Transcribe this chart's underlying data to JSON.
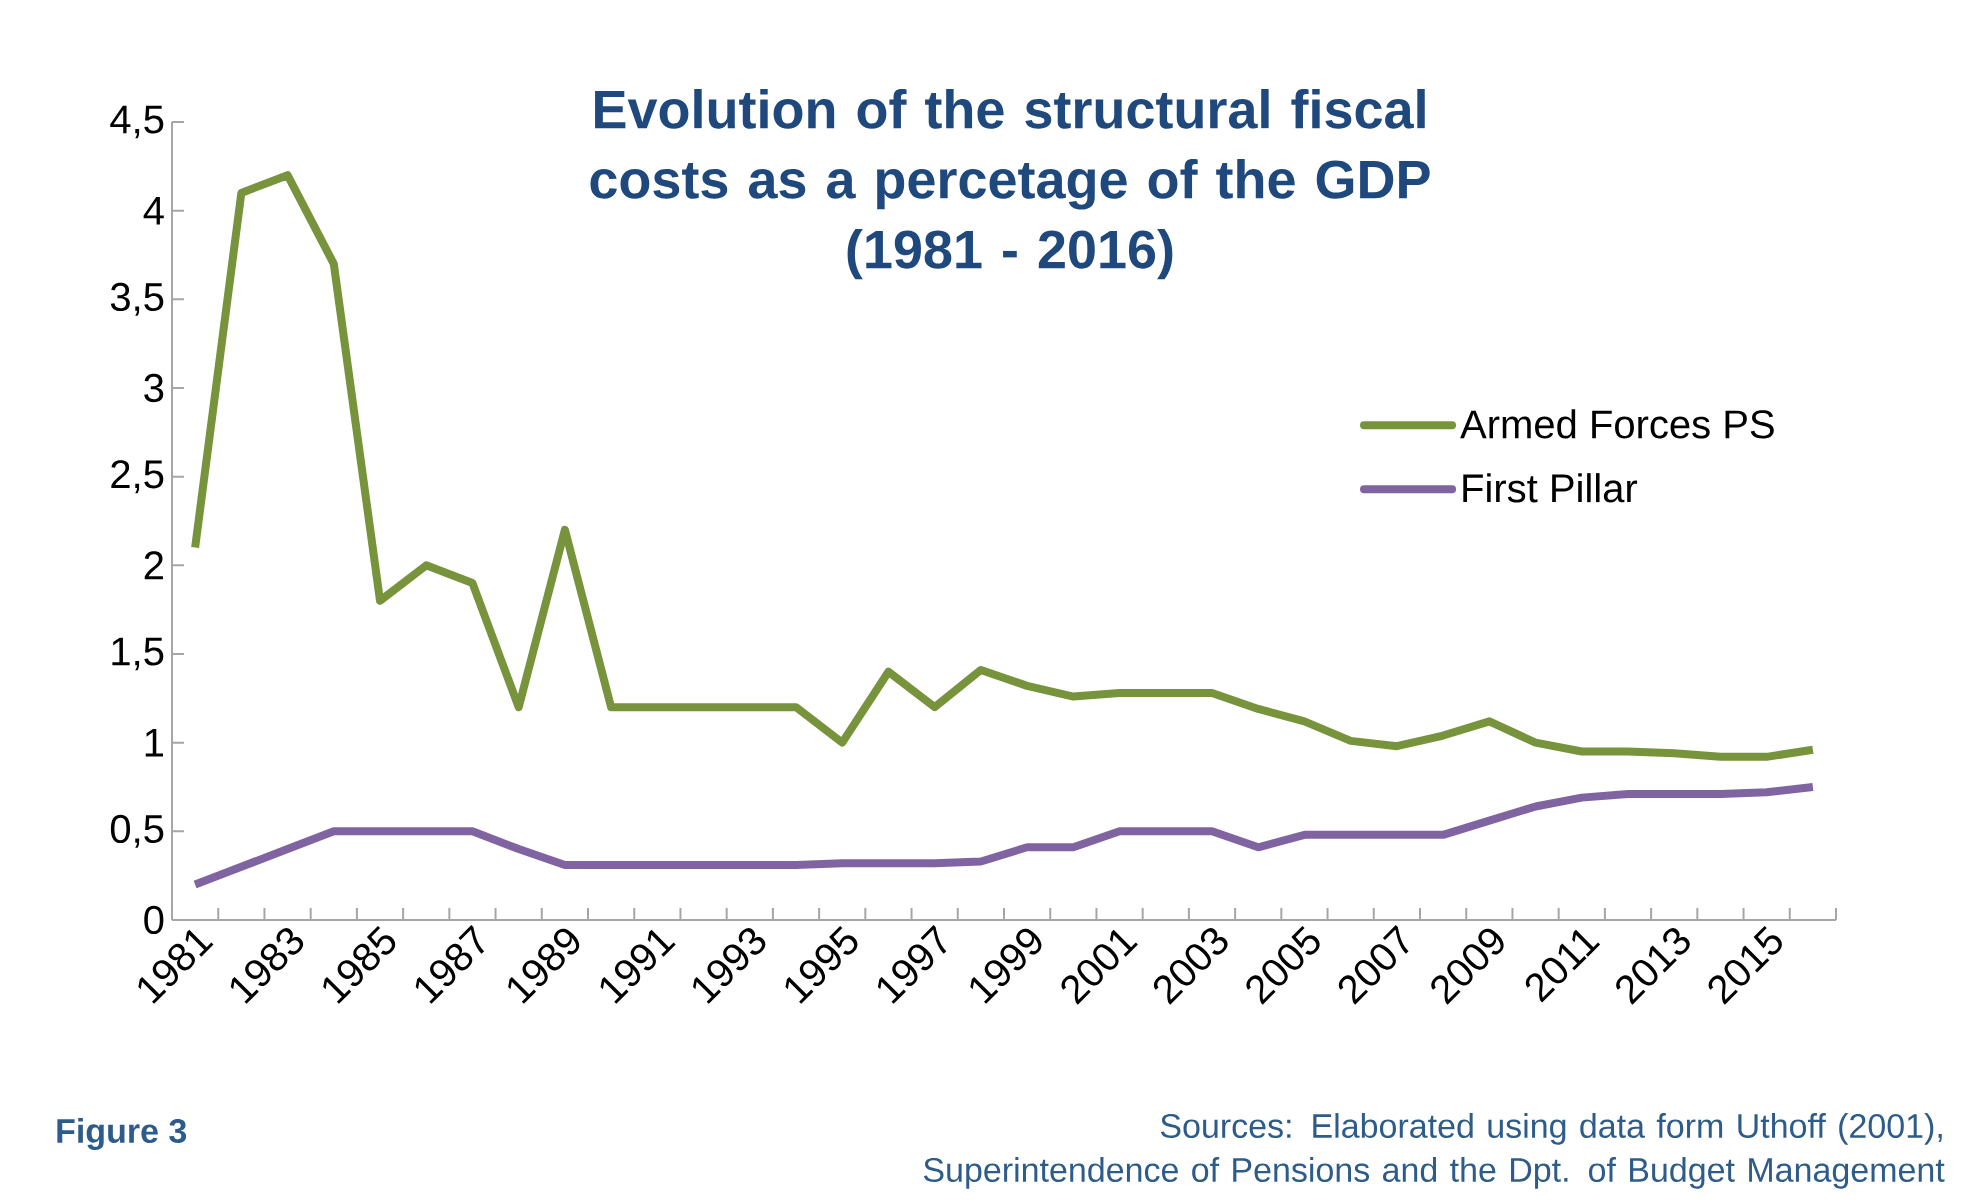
{
  "chart_data": {
    "type": "line",
    "title": "Evolution of the structural fiscal costs as a percetage of the GDP",
    "subtitle": "(1981 - 2016)",
    "categories": [
      "1981",
      null,
      "1983",
      null,
      "1985",
      null,
      "1987",
      null,
      "1989",
      null,
      "1991",
      null,
      "1993",
      null,
      "1995",
      null,
      "1997",
      null,
      "1999",
      null,
      "2001",
      null,
      "2003",
      null,
      "2005",
      null,
      "2007",
      null,
      "2009",
      null,
      "2011",
      null,
      "2013",
      null,
      "2015",
      null
    ],
    "series": [
      {
        "name": "Armed Forces PS",
        "color": "#77933c",
        "values": [
          2.1,
          4.1,
          4.2,
          3.7,
          1.8,
          2.0,
          1.9,
          1.2,
          2.2,
          1.2,
          1.2,
          1.2,
          1.2,
          1.2,
          1.0,
          1.4,
          1.2,
          1.41,
          1.32,
          1.26,
          1.28,
          1.28,
          1.28,
          1.19,
          1.12,
          1.01,
          0.98,
          1.04,
          1.12,
          1.0,
          0.95,
          0.95,
          0.94,
          0.92,
          0.92,
          0.96
        ]
      },
      {
        "name": "First Pillar",
        "color": "#8064a2",
        "values": [
          0.2,
          0.3,
          0.4,
          0.5,
          0.5,
          0.5,
          0.5,
          0.4,
          0.31,
          0.31,
          0.31,
          0.31,
          0.31,
          0.31,
          0.32,
          0.32,
          0.32,
          0.33,
          0.41,
          0.41,
          0.5,
          0.5,
          0.5,
          0.41,
          0.48,
          0.48,
          0.48,
          0.48,
          0.56,
          0.64,
          0.69,
          0.71,
          0.71,
          0.71,
          0.72,
          0.75
        ]
      }
    ],
    "ylim": [
      0,
      4.5
    ],
    "yticks": [
      0,
      {
        "value": 0.5,
        "label": "0,5"
      },
      1,
      {
        "value": 1.5,
        "label": "1,5"
      },
      2,
      {
        "value": 2.5,
        "label": "2,5"
      },
      3,
      {
        "value": 3.5,
        "label": "3,5"
      },
      4,
      {
        "value": 4.5,
        "label": "4,5"
      }
    ],
    "legend": "right",
    "grid": false,
    "marker": "none",
    "line_style": "solid",
    "annotations": [
      "Figure 3",
      "Sources: Elaborated using data form Uthoff (2001), Superintendence of Pensions  and the Dpt. of Budget Management"
    ]
  }
}
